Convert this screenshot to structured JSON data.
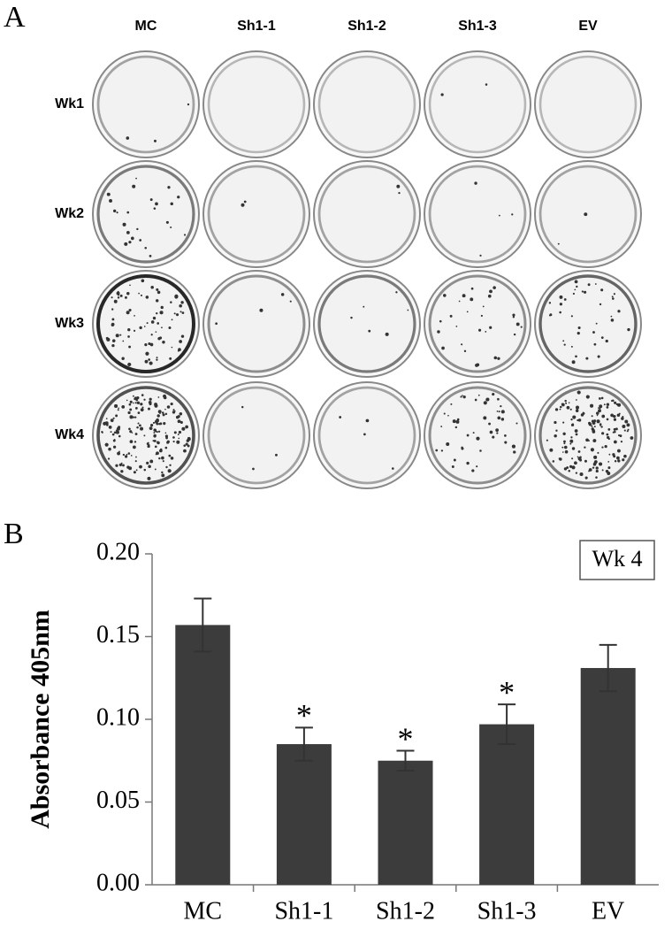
{
  "panel_a": {
    "label": "A",
    "columns": [
      "MC",
      "Sh1-1",
      "Sh1-2",
      "Sh1-3",
      "EV"
    ],
    "rows": [
      "Wk1",
      "Wk2",
      "Wk3",
      "Wk4"
    ]
  },
  "panel_b": {
    "label": "B"
  },
  "chart_data": {
    "type": "bar",
    "ylabel": "Absorbance 405nm",
    "annotation": "Wk 4",
    "categories": [
      "MC",
      "Sh1-1",
      "Sh1-2",
      "Sh1-3",
      "EV"
    ],
    "values": [
      0.157,
      0.085,
      0.075,
      0.097,
      0.131
    ],
    "errors": [
      0.016,
      0.01,
      0.006,
      0.012,
      0.014
    ],
    "markers": [
      null,
      "*",
      "*",
      "*",
      null
    ],
    "color": "#3c3c3c",
    "ylim": [
      0,
      0.2
    ],
    "yticks": [
      {
        "value": 0,
        "label": "0.00"
      },
      {
        "value": 0.05,
        "label": "0.05"
      },
      {
        "value": 0.1,
        "label": "0.10"
      },
      {
        "value": 0.15,
        "label": "0.15"
      },
      {
        "value": 0.2,
        "label": "0.20"
      }
    ]
  }
}
